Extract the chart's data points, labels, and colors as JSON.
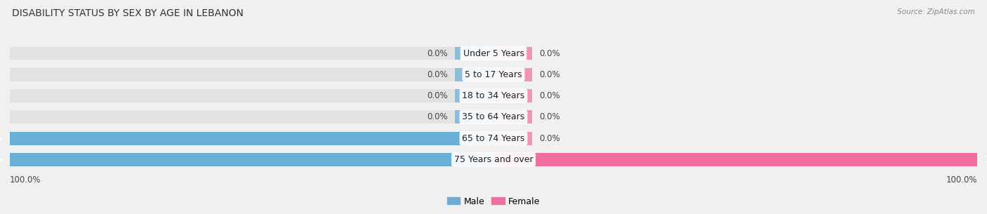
{
  "title": "DISABILITY STATUS BY SEX BY AGE IN LEBANON",
  "source": "Source: ZipAtlas.com",
  "categories": [
    "Under 5 Years",
    "5 to 17 Years",
    "18 to 34 Years",
    "35 to 64 Years",
    "65 to 74 Years",
    "75 Years and over"
  ],
  "male_values": [
    0.0,
    0.0,
    0.0,
    0.0,
    100.0,
    100.0
  ],
  "female_values": [
    0.0,
    0.0,
    0.0,
    0.0,
    0.0,
    100.0
  ],
  "male_color": "#6baed6",
  "female_color": "#f06fa0",
  "bar_bg_color": "#e2e2e2",
  "bar_height": 0.62,
  "title_fontsize": 10,
  "label_fontsize": 8.5,
  "category_fontsize": 9,
  "legend_fontsize": 9,
  "fig_bg_color": "#f0f0f0",
  "axis_label_color": "#444444",
  "bottom_label": "100.0%"
}
